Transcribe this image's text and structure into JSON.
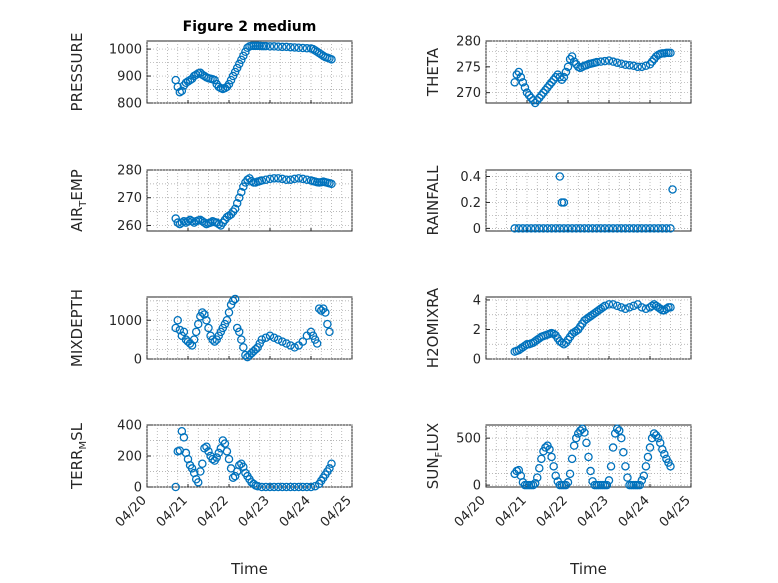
{
  "colors": {
    "marker": "#0072BD",
    "axes": "#262626",
    "grid": "#a0a0a0"
  },
  "chart_data": [
    {
      "type": "scatter",
      "title": "Figure 2 medium",
      "ylabel": "PRESSURE",
      "ylim": [
        800,
        1030
      ],
      "yticks": [
        "1000",
        "900",
        "800"
      ],
      "xlim": [
        0,
        5
      ],
      "grid": true,
      "x": [
        0.7,
        0.75,
        0.8,
        0.85,
        0.9,
        0.95,
        1.0,
        1.05,
        1.1,
        1.15,
        1.2,
        1.25,
        1.3,
        1.35,
        1.4,
        1.45,
        1.5,
        1.55,
        1.6,
        1.65,
        1.7,
        1.75,
        1.8,
        1.85,
        1.9,
        1.95,
        2.0,
        2.05,
        2.1,
        2.15,
        2.2,
        2.25,
        2.3,
        2.35,
        2.4,
        2.45,
        2.5,
        2.55,
        2.6,
        2.65,
        2.7,
        2.75,
        2.8,
        2.85,
        2.9,
        3.0,
        3.1,
        3.2,
        3.3,
        3.4,
        3.5,
        3.6,
        3.7,
        3.8,
        3.9,
        4.0,
        4.05,
        4.1,
        4.15,
        4.2,
        4.25,
        4.3,
        4.35,
        4.4,
        4.45,
        4.5
      ],
      "y": [
        885,
        860,
        840,
        845,
        865,
        875,
        880,
        885,
        890,
        900,
        905,
        910,
        912,
        905,
        900,
        895,
        892,
        890,
        888,
        885,
        870,
        860,
        855,
        852,
        855,
        860,
        870,
        885,
        900,
        915,
        930,
        945,
        960,
        975,
        990,
        1005,
        1010,
        1012,
        1012,
        1012,
        1012,
        1012,
        1011,
        1011,
        1011,
        1010,
        1010,
        1009,
        1008,
        1008,
        1007,
        1006,
        1005,
        1004,
        1003,
        1002,
        1000,
        995,
        990,
        985,
        980,
        975,
        970,
        968,
        965,
        962
      ]
    },
    {
      "type": "scatter",
      "ylabel": "THETA",
      "ylim": [
        268,
        280
      ],
      "yticks": [
        "280",
        "275",
        "270"
      ],
      "xlim": [
        0,
        5
      ],
      "grid": true,
      "x": [
        0.7,
        0.75,
        0.8,
        0.85,
        0.9,
        0.95,
        1.0,
        1.05,
        1.1,
        1.15,
        1.2,
        1.25,
        1.3,
        1.35,
        1.4,
        1.45,
        1.5,
        1.55,
        1.6,
        1.65,
        1.7,
        1.75,
        1.8,
        1.85,
        1.9,
        1.95,
        2.0,
        2.05,
        2.1,
        2.15,
        2.2,
        2.25,
        2.3,
        2.35,
        2.4,
        2.45,
        2.5,
        2.55,
        2.6,
        2.65,
        2.7,
        2.8,
        2.9,
        3.0,
        3.1,
        3.2,
        3.3,
        3.4,
        3.5,
        3.6,
        3.7,
        3.8,
        3.9,
        4.0,
        4.05,
        4.1,
        4.15,
        4.2,
        4.25,
        4.3,
        4.35,
        4.4,
        4.45,
        4.5
      ],
      "y": [
        272,
        273.5,
        274,
        273,
        272,
        271,
        270,
        269.5,
        269,
        268.5,
        268,
        268.5,
        269,
        269.5,
        270,
        270.5,
        271,
        271.5,
        272,
        272.5,
        273,
        273.5,
        273,
        272.5,
        273,
        274,
        275,
        276.5,
        277,
        276,
        275.5,
        275,
        274.8,
        275,
        275.2,
        275.3,
        275.5,
        275.6,
        275.7,
        275.8,
        275.9,
        276,
        276.1,
        276.2,
        276,
        275.8,
        275.6,
        275.4,
        275.3,
        275.2,
        275,
        275,
        275.2,
        275.5,
        276,
        276.5,
        277,
        277.3,
        277.5,
        277.6,
        277.6,
        277.7,
        277.7,
        277.7
      ]
    },
    {
      "type": "scatter",
      "ylabel": "AIR_TEMP",
      "ylabel_main": "AIR",
      "ylabel_sub": "T",
      "ylabel_tail": "EMP",
      "ylim": [
        258,
        280
      ],
      "yticks": [
        "280",
        "270",
        "260"
      ],
      "xlim": [
        0,
        5
      ],
      "grid": true,
      "x": [
        0.7,
        0.75,
        0.8,
        0.85,
        0.9,
        0.95,
        1.0,
        1.05,
        1.1,
        1.15,
        1.2,
        1.25,
        1.3,
        1.35,
        1.4,
        1.45,
        1.5,
        1.55,
        1.6,
        1.65,
        1.7,
        1.75,
        1.8,
        1.85,
        1.9,
        1.95,
        2.0,
        2.05,
        2.1,
        2.15,
        2.2,
        2.25,
        2.3,
        2.35,
        2.4,
        2.45,
        2.5,
        2.55,
        2.6,
        2.65,
        2.7,
        2.75,
        2.8,
        2.9,
        3.0,
        3.1,
        3.2,
        3.3,
        3.4,
        3.5,
        3.6,
        3.7,
        3.8,
        3.9,
        4.0,
        4.05,
        4.1,
        4.15,
        4.2,
        4.25,
        4.3,
        4.35,
        4.4,
        4.45,
        4.5
      ],
      "y": [
        262.5,
        261,
        260.5,
        261,
        261.5,
        261,
        261.5,
        262,
        261.5,
        261,
        261.5,
        261.8,
        262,
        261.5,
        261,
        260.5,
        260.8,
        261,
        261.5,
        261.2,
        261,
        260.5,
        260,
        261,
        262,
        263,
        263.5,
        264,
        265,
        266,
        268,
        270,
        272,
        274,
        275.5,
        276.5,
        277,
        276,
        275.5,
        275.5,
        275.8,
        276,
        276.2,
        276.5,
        276.8,
        277,
        277,
        276.8,
        276.5,
        276.5,
        276.8,
        277,
        276.8,
        276.5,
        276.2,
        276,
        275.8,
        275.6,
        275.5,
        275.6,
        275.8,
        275.6,
        275.4,
        275.2,
        275
      ]
    },
    {
      "type": "scatter",
      "ylabel": "RAINFALL",
      "ylim": [
        -0.02,
        0.45
      ],
      "yticks": [
        "0.4",
        "0.2",
        "0"
      ],
      "xlim": [
        0,
        5
      ],
      "grid": true,
      "x": [
        0.7,
        0.8,
        0.9,
        1.0,
        1.1,
        1.2,
        1.3,
        1.4,
        1.5,
        1.6,
        1.7,
        1.8,
        1.9,
        2.0,
        2.1,
        2.2,
        2.3,
        2.4,
        2.5,
        2.6,
        2.7,
        2.8,
        2.9,
        3.0,
        3.1,
        3.2,
        3.3,
        3.4,
        3.5,
        3.6,
        3.7,
        3.8,
        3.9,
        4.0,
        4.1,
        4.2,
        4.3,
        4.4,
        4.5,
        1.8,
        1.85,
        1.9,
        4.55
      ],
      "y": [
        0,
        0,
        0,
        0,
        0,
        0,
        0,
        0,
        0,
        0,
        0,
        0,
        0,
        0,
        0,
        0,
        0,
        0,
        0,
        0,
        0,
        0,
        0,
        0,
        0,
        0,
        0,
        0,
        0,
        0,
        0,
        0,
        0,
        0,
        0,
        0,
        0,
        0,
        0,
        0.4,
        0.2,
        0.2,
        0.3
      ]
    },
    {
      "type": "scatter",
      "ylabel": "MIXDEPTH",
      "ylim": [
        0,
        1600
      ],
      "yticks": [
        "1000",
        "0"
      ],
      "xlim": [
        0,
        5
      ],
      "grid": true,
      "x": [
        0.7,
        0.75,
        0.8,
        0.85,
        0.9,
        0.95,
        1.0,
        1.05,
        1.1,
        1.15,
        1.2,
        1.25,
        1.3,
        1.35,
        1.4,
        1.45,
        1.5,
        1.55,
        1.6,
        1.65,
        1.7,
        1.75,
        1.8,
        1.85,
        1.9,
        1.95,
        2.0,
        2.05,
        2.1,
        2.15,
        2.2,
        2.25,
        2.3,
        2.35,
        2.4,
        2.45,
        2.5,
        2.55,
        2.6,
        2.65,
        2.7,
        2.75,
        2.8,
        2.9,
        3.0,
        3.1,
        3.2,
        3.3,
        3.4,
        3.5,
        3.6,
        3.7,
        3.8,
        3.9,
        4.0,
        4.05,
        4.1,
        4.15,
        4.2,
        4.25,
        4.3,
        4.35,
        4.4,
        4.45
      ],
      "y": [
        800,
        1000,
        750,
        600,
        700,
        500,
        450,
        400,
        350,
        500,
        700,
        900,
        1100,
        1200,
        1150,
        1000,
        800,
        600,
        500,
        450,
        500,
        600,
        700,
        800,
        900,
        1000,
        1200,
        1400,
        1500,
        1550,
        800,
        700,
        500,
        300,
        100,
        50,
        100,
        150,
        200,
        250,
        300,
        400,
        500,
        550,
        600,
        550,
        500,
        450,
        400,
        350,
        300,
        350,
        450,
        600,
        700,
        600,
        500,
        400,
        1300,
        1250,
        1300,
        1200,
        900,
        700
      ]
    },
    {
      "type": "scatter",
      "ylabel": "H2OMIXRA",
      "ylim": [
        0,
        4.2
      ],
      "yticks": [
        "4",
        "2",
        "0"
      ],
      "xlim": [
        0,
        5
      ],
      "grid": true,
      "x": [
        0.7,
        0.75,
        0.8,
        0.85,
        0.9,
        0.95,
        1.0,
        1.05,
        1.1,
        1.15,
        1.2,
        1.25,
        1.3,
        1.35,
        1.4,
        1.45,
        1.5,
        1.55,
        1.6,
        1.65,
        1.7,
        1.75,
        1.8,
        1.85,
        1.9,
        1.95,
        2.0,
        2.05,
        2.1,
        2.15,
        2.2,
        2.25,
        2.3,
        2.35,
        2.4,
        2.45,
        2.5,
        2.55,
        2.6,
        2.65,
        2.7,
        2.75,
        2.8,
        2.85,
        2.9,
        3.0,
        3.1,
        3.2,
        3.3,
        3.4,
        3.5,
        3.6,
        3.7,
        3.8,
        3.9,
        4.0,
        4.05,
        4.1,
        4.15,
        4.2,
        4.25,
        4.3,
        4.35,
        4.4,
        4.45,
        4.5
      ],
      "y": [
        0.5,
        0.55,
        0.6,
        0.7,
        0.8,
        0.9,
        1.0,
        1.0,
        1.05,
        1.1,
        1.2,
        1.3,
        1.4,
        1.5,
        1.55,
        1.6,
        1.65,
        1.7,
        1.75,
        1.7,
        1.6,
        1.4,
        1.2,
        1.1,
        1.0,
        1.1,
        1.3,
        1.5,
        1.7,
        1.8,
        1.9,
        2.0,
        2.2,
        2.4,
        2.6,
        2.7,
        2.8,
        2.9,
        3.0,
        3.1,
        3.2,
        3.3,
        3.4,
        3.5,
        3.6,
        3.7,
        3.7,
        3.6,
        3.5,
        3.4,
        3.5,
        3.6,
        3.7,
        3.5,
        3.4,
        3.5,
        3.6,
        3.7,
        3.6,
        3.5,
        3.4,
        3.3,
        3.3,
        3.4,
        3.5,
        3.5
      ]
    },
    {
      "type": "scatter",
      "ylabel": "TERR_MSL",
      "ylabel_main": "TERR",
      "ylabel_sub": "M",
      "ylabel_tail": "SL",
      "ylim": [
        0,
        400
      ],
      "yticks": [
        "400",
        "200",
        "0"
      ],
      "xlim": [
        0,
        5
      ],
      "grid": true,
      "x": [
        0.7,
        0.75,
        0.8,
        0.85,
        0.9,
        0.95,
        1.0,
        1.05,
        1.1,
        1.15,
        1.2,
        1.25,
        1.3,
        1.35,
        1.4,
        1.45,
        1.5,
        1.55,
        1.6,
        1.65,
        1.7,
        1.75,
        1.8,
        1.85,
        1.9,
        1.95,
        2.0,
        2.05,
        2.1,
        2.15,
        2.2,
        2.25,
        2.3,
        2.35,
        2.4,
        2.45,
        2.5,
        2.55,
        2.6,
        2.65,
        2.7,
        2.8,
        2.9,
        3.0,
        3.1,
        3.2,
        3.3,
        3.4,
        3.5,
        3.6,
        3.7,
        3.8,
        3.9,
        4.0,
        4.1,
        4.2,
        4.25,
        4.3,
        4.35,
        4.4,
        4.45,
        4.5
      ],
      "y": [
        0,
        230,
        235,
        360,
        320,
        220,
        180,
        140,
        120,
        90,
        50,
        30,
        100,
        150,
        250,
        260,
        230,
        200,
        180,
        170,
        190,
        220,
        250,
        300,
        280,
        230,
        180,
        120,
        60,
        70,
        100,
        140,
        150,
        130,
        90,
        70,
        50,
        30,
        20,
        10,
        5,
        0,
        0,
        0,
        0,
        0,
        0,
        0,
        0,
        0,
        0,
        0,
        0,
        0,
        5,
        20,
        40,
        60,
        80,
        100,
        120,
        150
      ]
    },
    {
      "type": "scatter",
      "ylabel": "SUN_FLUX",
      "ylabel_main": "SUN",
      "ylabel_sub": "F",
      "ylabel_tail": "LUX",
      "ylim": [
        -20,
        640
      ],
      "yticks": [
        "500",
        "0"
      ],
      "xlim": [
        0,
        5
      ],
      "grid": true,
      "x": [
        0.7,
        0.75,
        0.8,
        0.85,
        0.9,
        0.95,
        1.0,
        1.05,
        1.1,
        1.15,
        1.2,
        1.25,
        1.3,
        1.35,
        1.4,
        1.45,
        1.5,
        1.55,
        1.6,
        1.65,
        1.7,
        1.75,
        1.8,
        1.85,
        1.9,
        1.95,
        2.0,
        2.05,
        2.1,
        2.15,
        2.2,
        2.25,
        2.3,
        2.35,
        2.4,
        2.45,
        2.5,
        2.55,
        2.6,
        2.65,
        2.7,
        2.75,
        2.8,
        2.85,
        2.9,
        2.95,
        3.0,
        3.05,
        3.1,
        3.15,
        3.2,
        3.25,
        3.3,
        3.35,
        3.4,
        3.45,
        3.5,
        3.55,
        3.6,
        3.65,
        3.7,
        3.75,
        3.8,
        3.85,
        3.9,
        3.95,
        4.0,
        4.05,
        4.1,
        4.15,
        4.2,
        4.25,
        4.3,
        4.35,
        4.4,
        4.45,
        4.5
      ],
      "y": [
        120,
        150,
        160,
        100,
        30,
        0,
        0,
        0,
        0,
        0,
        20,
        80,
        180,
        280,
        360,
        400,
        420,
        380,
        300,
        200,
        100,
        40,
        0,
        0,
        0,
        0,
        30,
        120,
        280,
        420,
        500,
        550,
        580,
        600,
        560,
        450,
        300,
        150,
        40,
        0,
        0,
        0,
        0,
        0,
        0,
        0,
        50,
        200,
        400,
        550,
        600,
        580,
        500,
        350,
        200,
        80,
        0,
        0,
        0,
        0,
        0,
        0,
        50,
        100,
        200,
        300,
        400,
        500,
        550,
        530,
        500,
        450,
        380,
        330,
        280,
        240,
        200
      ]
    }
  ],
  "xaxis": {
    "ticklabels": [
      "04/20",
      "04/21",
      "04/22",
      "04/23",
      "04/24",
      "04/25"
    ],
    "label": "Time"
  }
}
